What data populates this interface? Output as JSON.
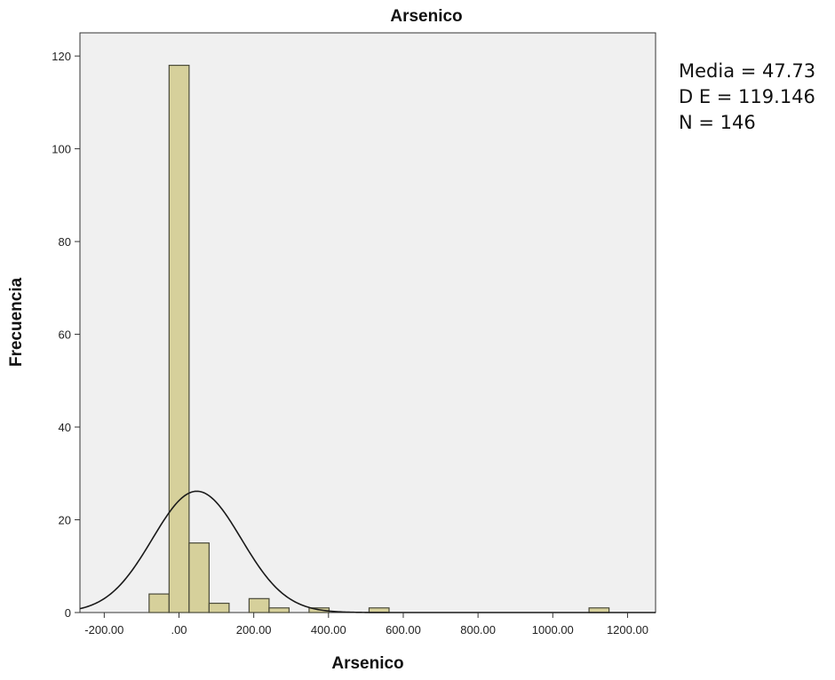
{
  "chart_data": {
    "type": "bar",
    "title": "Arsenico",
    "xlabel": "Arsenico",
    "ylabel": "Frecuencia",
    "bin_width": 53.5,
    "bins": [
      {
        "x0": -80.0,
        "x1": -26.5,
        "count": 4
      },
      {
        "x0": -26.5,
        "x1": 27.0,
        "count": 118
      },
      {
        "x0": 27.0,
        "x1": 80.5,
        "count": 15
      },
      {
        "x0": 80.5,
        "x1": 134.0,
        "count": 2
      },
      {
        "x0": 187.5,
        "x1": 241.0,
        "count": 3
      },
      {
        "x0": 241.0,
        "x1": 294.5,
        "count": 1
      },
      {
        "x0": 348.0,
        "x1": 401.5,
        "count": 1
      },
      {
        "x0": 508.5,
        "x1": 562.0,
        "count": 1
      },
      {
        "x0": 1097.0,
        "x1": 1150.5,
        "count": 1
      }
    ],
    "normal_curve": {
      "mean": 47.73,
      "sd": 119.146,
      "n": 146
    },
    "xlim": [
      -265,
      1275
    ],
    "ylim": [
      0,
      125
    ],
    "x_ticks": [
      -200,
      0,
      200,
      400,
      600,
      800,
      1000,
      1200
    ],
    "x_tick_labels": [
      "-200.00",
      ".00",
      "200.00",
      "400.00",
      "600.00",
      "800.00",
      "1000.00",
      "1200.00"
    ],
    "y_ticks": [
      0,
      20,
      40,
      60,
      80,
      100,
      120
    ],
    "y_tick_labels": [
      "0",
      "20",
      "40",
      "60",
      "80",
      "100",
      "120"
    ],
    "grid": false,
    "colors": {
      "bar_fill": "#d6d09b",
      "bar_stroke": "#4a4a3a",
      "plot_bg": "#f0f0f0",
      "curve": "#1a1a1a"
    }
  },
  "stats": {
    "media": "Media = 47.73",
    "de": "D E = 119.146",
    "n": "N = 146"
  }
}
